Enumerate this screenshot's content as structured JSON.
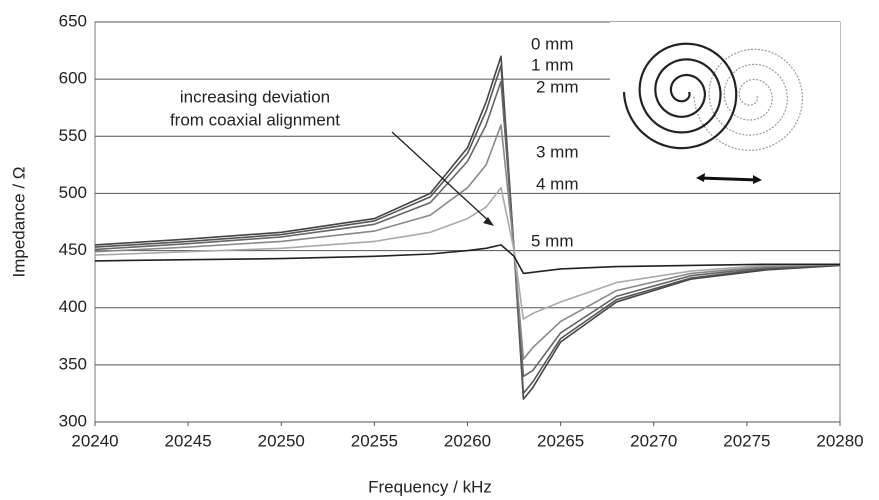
{
  "chart_data": {
    "type": "line",
    "x_label": "Frequency / kHz",
    "y_label": "Impedance / Ω",
    "annotation": [
      "increasing deviation",
      "from coaxial alignment"
    ],
    "x": [
      20240,
      20245,
      20250,
      20255,
      20258,
      20260,
      20261,
      20261.8,
      20262.5,
      20263,
      20263.5,
      20265,
      20268,
      20272,
      20276,
      20280
    ],
    "series": [
      {
        "name": "0 mm",
        "color": "#444444",
        "values": [
          455,
          460,
          466,
          478,
          500,
          540,
          580,
          620,
          450,
          320,
          330,
          370,
          405,
          425,
          433,
          437
        ]
      },
      {
        "name": "1 mm",
        "color": "#555555",
        "values": [
          453,
          458,
          464,
          476,
          497,
          535,
          572,
          612,
          450,
          325,
          335,
          373,
          407,
          426,
          434,
          438
        ]
      },
      {
        "name": "2 mm",
        "color": "#666666",
        "values": [
          451,
          456,
          462,
          473,
          492,
          528,
          560,
          598,
          450,
          340,
          345,
          378,
          410,
          428,
          435,
          438
        ]
      },
      {
        "name": "3 mm",
        "color": "#888888",
        "values": [
          449,
          453,
          458,
          467,
          481,
          505,
          525,
          560,
          450,
          355,
          365,
          388,
          415,
          430,
          436,
          438
        ]
      },
      {
        "name": "4 mm",
        "color": "#aaaaaa",
        "values": [
          446,
          449,
          452,
          458,
          466,
          478,
          488,
          505,
          450,
          390,
          395,
          405,
          422,
          432,
          437,
          438
        ]
      },
      {
        "name": "5 mm",
        "color": "#222222",
        "values": [
          441,
          442,
          443,
          445,
          447,
          450,
          452,
          455,
          445,
          430,
          431,
          434,
          436,
          437,
          438,
          438
        ]
      }
    ],
    "xlim": [
      20240,
      20280
    ],
    "xticks": [
      20240,
      20245,
      20250,
      20255,
      20260,
      20265,
      20270,
      20275,
      20280
    ],
    "ylim": [
      300,
      650
    ],
    "yticks": [
      300,
      350,
      400,
      450,
      500,
      550,
      600,
      650
    ],
    "grid": true
  }
}
